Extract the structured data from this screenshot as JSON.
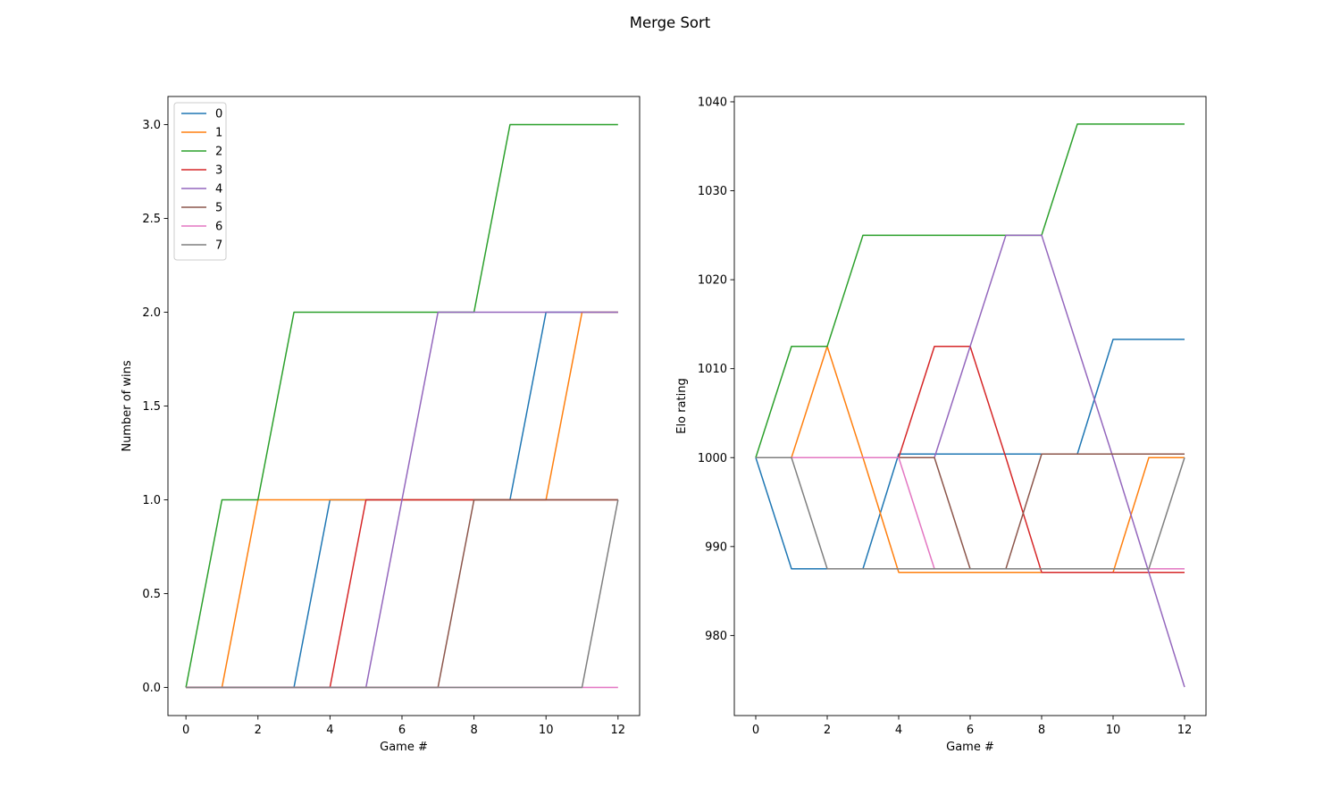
{
  "figure_title": "Merge Sort",
  "colors": [
    "#1f77b4",
    "#ff7f0e",
    "#2ca02c",
    "#d62728",
    "#9467bd",
    "#8c564b",
    "#e377c2",
    "#7f7f7f"
  ],
  "chart_data": [
    {
      "type": "line",
      "xlabel": "Game #",
      "ylabel": "Number of wins",
      "xlim": [
        -0.5,
        12.6
      ],
      "ylim": [
        -0.15,
        3.15
      ],
      "xticks": [
        0,
        2,
        4,
        6,
        8,
        10,
        12
      ],
      "yticks": [
        0.0,
        0.5,
        1.0,
        1.5,
        2.0,
        2.5,
        3.0
      ],
      "ytick_labels": [
        "0.0",
        "0.5",
        "1.0",
        "1.5",
        "2.0",
        "2.5",
        "3.0"
      ],
      "legend": "top-left",
      "x": [
        0,
        1,
        2,
        3,
        4,
        5,
        6,
        7,
        8,
        9,
        10,
        11,
        12
      ],
      "series": [
        {
          "name": "0",
          "values": [
            0,
            0,
            0,
            0,
            1,
            1,
            1,
            1,
            1,
            1,
            2,
            2,
            2
          ]
        },
        {
          "name": "1",
          "values": [
            0,
            0,
            1,
            1,
            1,
            1,
            1,
            1,
            1,
            1,
            1,
            2,
            2
          ]
        },
        {
          "name": "2",
          "values": [
            0,
            1,
            1,
            2,
            2,
            2,
            2,
            2,
            2,
            3,
            3,
            3,
            3
          ]
        },
        {
          "name": "3",
          "values": [
            0,
            0,
            0,
            0,
            0,
            1,
            1,
            1,
            1,
            1,
            1,
            1,
            1
          ]
        },
        {
          "name": "4",
          "values": [
            0,
            0,
            0,
            0,
            0,
            0,
            1,
            2,
            2,
            2,
            2,
            2,
            2
          ]
        },
        {
          "name": "5",
          "values": [
            0,
            0,
            0,
            0,
            0,
            0,
            0,
            0,
            1,
            1,
            1,
            1,
            1
          ]
        },
        {
          "name": "6",
          "values": [
            0,
            0,
            0,
            0,
            0,
            0,
            0,
            0,
            0,
            0,
            0,
            0,
            0
          ]
        },
        {
          "name": "7",
          "values": [
            0,
            0,
            0,
            0,
            0,
            0,
            0,
            0,
            0,
            0,
            0,
            0,
            1
          ]
        }
      ]
    },
    {
      "type": "line",
      "xlabel": "Game #",
      "ylabel": "Elo rating",
      "xlim": [
        -0.6,
        12.6
      ],
      "ylim": [
        971,
        1040.6
      ],
      "xticks": [
        0,
        2,
        4,
        6,
        8,
        10,
        12
      ],
      "yticks": [
        980,
        990,
        1000,
        1010,
        1020,
        1030,
        1040
      ],
      "ytick_labels": [
        "980",
        "990",
        "1000",
        "1010",
        "1020",
        "1030",
        "1040"
      ],
      "x": [
        0,
        1,
        2,
        3,
        4,
        5,
        6,
        7,
        8,
        9,
        10,
        11,
        12
      ],
      "series": [
        {
          "name": "0",
          "values": [
            1000,
            987.5,
            987.5,
            987.5,
            1000.4,
            1000.4,
            1000.4,
            1000.4,
            1000.4,
            1000.4,
            1013.3,
            1013.3,
            1013.3
          ]
        },
        {
          "name": "1",
          "values": [
            1000,
            1000,
            1012.5,
            1000,
            987.1,
            987.1,
            987.1,
            987.1,
            987.1,
            987.1,
            987.1,
            1000,
            1000
          ]
        },
        {
          "name": "2",
          "values": [
            1000,
            1012.5,
            1012.5,
            1025,
            1025,
            1025,
            1025,
            1025,
            1025,
            1037.5,
            1037.5,
            1037.5,
            1037.5
          ]
        },
        {
          "name": "3",
          "values": [
            1000,
            1000,
            1000,
            1000,
            1000,
            1012.5,
            1012.5,
            1000,
            987.1,
            987.1,
            987.1,
            987.1,
            987.1
          ]
        },
        {
          "name": "4",
          "values": [
            1000,
            1000,
            1000,
            1000,
            1000,
            1000,
            1012.5,
            1025,
            1025,
            1012.5,
            1000,
            987.1,
            974.2
          ]
        },
        {
          "name": "5",
          "values": [
            1000,
            1000,
            1000,
            1000,
            1000,
            1000,
            987.5,
            987.5,
            1000.4,
            1000.4,
            1000.4,
            1000.4,
            1000.4
          ]
        },
        {
          "name": "6",
          "values": [
            1000,
            1000,
            1000,
            1000,
            1000,
            987.5,
            987.5,
            987.5,
            987.5,
            987.5,
            987.5,
            987.5,
            987.5
          ]
        },
        {
          "name": "7",
          "values": [
            1000,
            1000,
            987.5,
            987.5,
            987.5,
            987.5,
            987.5,
            987.5,
            987.5,
            987.5,
            987.5,
            987.5,
            1000
          ]
        }
      ]
    }
  ]
}
